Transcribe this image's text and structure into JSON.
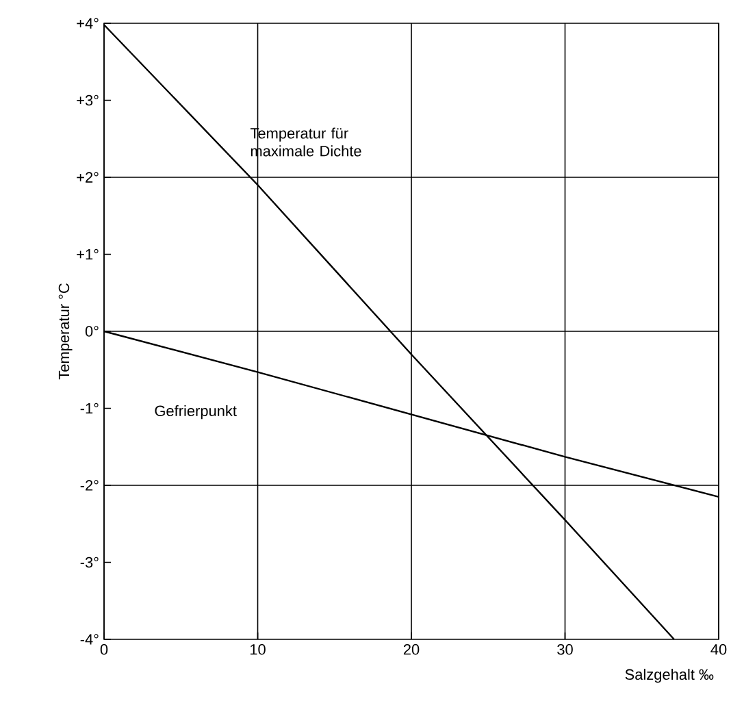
{
  "chart_data": {
    "type": "line",
    "xlabel": "Salzgehalt ‰",
    "ylabel": "Temperatur °C",
    "xlim": [
      0,
      40
    ],
    "ylim": [
      -4,
      4
    ],
    "xticks": [
      0,
      10,
      20,
      30,
      40
    ],
    "yticks": [
      {
        "value": 4,
        "label": "+4°"
      },
      {
        "value": 3,
        "label": "+3°"
      },
      {
        "value": 2,
        "label": "+2°"
      },
      {
        "value": 1,
        "label": "+1°"
      },
      {
        "value": 0,
        "label": "0°"
      },
      {
        "value": -1,
        "label": "-1°"
      },
      {
        "value": -2,
        "label": "-2°"
      },
      {
        "value": -3,
        "label": "-3°"
      },
      {
        "value": -4,
        "label": "-4°"
      }
    ],
    "grid": "x",
    "legend": false,
    "marker": "none",
    "line_style": "solid",
    "ref_lines": [
      {
        "axis": "y",
        "value": 2,
        "color": "#000000"
      },
      {
        "axis": "y",
        "value": 0,
        "color": "#000000"
      },
      {
        "axis": "y",
        "value": -2,
        "color": "#000000"
      }
    ],
    "series": [
      {
        "name": "Temperatur für maximale Dichte",
        "color": "#000000",
        "x": [
          0,
          10,
          20,
          30,
          37.1
        ],
        "values": [
          3.98,
          1.9,
          -0.3,
          -2.45,
          -4
        ]
      },
      {
        "name": "Gefrierpunkt",
        "color": "#000000",
        "x": [
          0,
          10,
          20,
          30,
          40
        ],
        "values": [
          0,
          -0.53,
          -1.08,
          -1.63,
          -2.15
        ]
      }
    ]
  }
}
